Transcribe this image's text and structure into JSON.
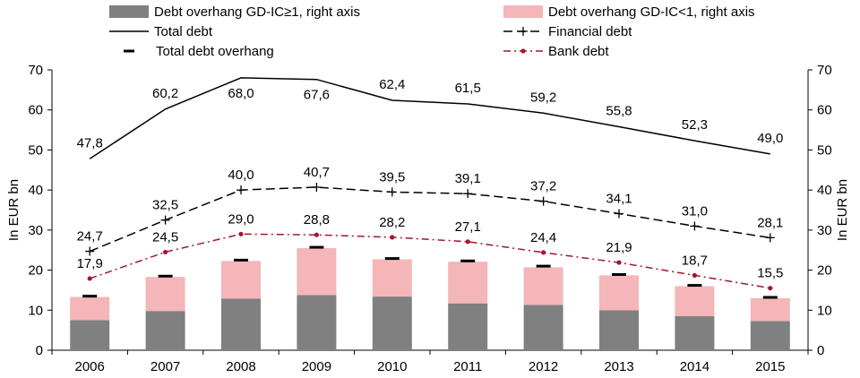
{
  "chart_data": {
    "type": "bar",
    "categories": [
      "2006",
      "2007",
      "2008",
      "2009",
      "2010",
      "2011",
      "2012",
      "2013",
      "2014",
      "2015"
    ],
    "ylabel_left": "In EUR bn",
    "ylabel_right": "In EUR bn",
    "ylim": [
      0,
      70
    ],
    "yticks": [
      0,
      10,
      20,
      30,
      40,
      50,
      60,
      70
    ],
    "legend_position": "top",
    "stacked_bars": [
      {
        "name": "Debt overhang GD-IC≥1, right axis",
        "color": "#808080",
        "values": [
          7.5,
          9.8,
          12.9,
          13.8,
          13.4,
          11.7,
          11.3,
          10.0,
          8.5,
          7.3
        ]
      },
      {
        "name": "Debt overhang GD-IC<1, right axis",
        "color": "#f4b6b8",
        "values": [
          5.8,
          8.5,
          9.4,
          11.7,
          9.3,
          10.4,
          9.4,
          8.7,
          7.5,
          5.7
        ]
      }
    ],
    "lines": [
      {
        "name": "Total debt",
        "style": "solid",
        "color": "#000000",
        "values": [
          47.8,
          60.2,
          68.0,
          67.6,
          62.4,
          61.5,
          59.2,
          55.8,
          52.3,
          49.0
        ],
        "labels": [
          "47,8",
          "60,2",
          "68,0",
          "67,6",
          "62,4",
          "61,5",
          "59,2",
          "55,8",
          "52,3",
          "49,0"
        ]
      },
      {
        "name": "Financial debt",
        "style": "dash-plus",
        "color": "#000000",
        "values": [
          24.7,
          32.5,
          40.0,
          40.7,
          39.5,
          39.1,
          37.2,
          34.1,
          31.0,
          28.1
        ],
        "labels": [
          "24,7",
          "32,5",
          "40,0",
          "40,7",
          "39,5",
          "39,1",
          "37,2",
          "34,1",
          "31,0",
          "28,1"
        ]
      },
      {
        "name": "Bank debt",
        "style": "dash-dot",
        "color": "#a3162f",
        "values": [
          17.9,
          24.5,
          29.0,
          28.8,
          28.2,
          27.1,
          24.4,
          21.9,
          18.7,
          15.5
        ],
        "labels": [
          "17,9",
          "24,5",
          "29,0",
          "28,8",
          "28,2",
          "27,1",
          "24,4",
          "21,9",
          "18,7",
          "15,5"
        ]
      }
    ],
    "markers": {
      "name": "Total debt overhang",
      "color": "#000000",
      "values": [
        13.5,
        18.5,
        22.5,
        25.7,
        22.9,
        22.3,
        21.0,
        18.9,
        16.2,
        13.2
      ]
    }
  }
}
